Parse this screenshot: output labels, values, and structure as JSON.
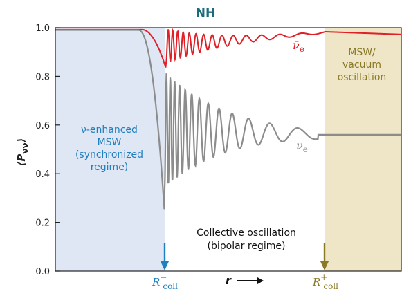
{
  "chart_data": {
    "type": "line",
    "title": "NH",
    "ylabel": "P",
    "ylabel_sub": "νν",
    "xlabel": "r",
    "ylim": [
      0,
      1.0
    ],
    "yticks": [
      "0.0",
      "0.2",
      "0.4",
      "0.6",
      "0.8",
      "1.0"
    ],
    "ytick_values": [
      0.0,
      0.2,
      0.4,
      0.6,
      0.8,
      1.0
    ],
    "grid": false,
    "regions": [
      {
        "name": "left",
        "color": "#dfe6f4",
        "lines": [
          "ν-enhanced",
          "MSW",
          "(synchronized",
          "regime)"
        ]
      },
      {
        "name": "center",
        "color": "#ffffff",
        "lines": [
          "Collective oscillation",
          "(bipolar regime)"
        ]
      },
      {
        "name": "right",
        "color": "#efe6c8",
        "lines": [
          "MSW/",
          "vacuum",
          "oscillation"
        ]
      }
    ],
    "markers": [
      {
        "label": "R",
        "sup": "−",
        "sub": "coll",
        "color": "#1f7fbf"
      },
      {
        "label": "R",
        "sup": "+",
        "sub": "coll",
        "color": "#8a7a25"
      }
    ],
    "series": [
      {
        "name": "ν̄e",
        "label_main": "ν̄",
        "label_sub": "e",
        "color": "#e01f26"
      },
      {
        "name": "νe",
        "label_main": "ν",
        "label_sub": "e",
        "color": "#8c8c8c"
      }
    ]
  }
}
